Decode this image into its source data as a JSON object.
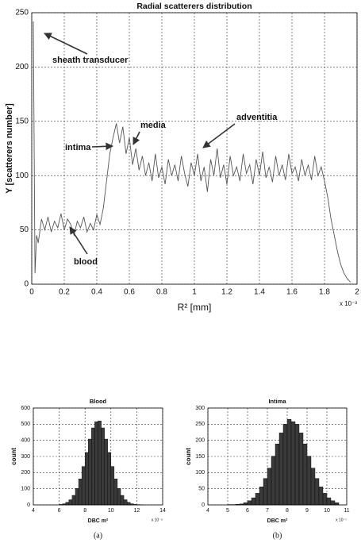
{
  "chart_data": [
    {
      "type": "line",
      "title": "Radial scatterers distribution",
      "x_label": "R² [mm]",
      "y_label": "Y [scatterers number]",
      "x_multiplier": "x 10⁻³",
      "xlim": [
        0,
        2
      ],
      "xticks": [
        0,
        0.2,
        0.4,
        0.6,
        0.8,
        1,
        1.2,
        1.4,
        1.6,
        1.8,
        2
      ],
      "ylim": [
        0,
        250
      ],
      "yticks": [
        0,
        50,
        100,
        150,
        200,
        250
      ],
      "grid": true,
      "annotations": [
        "sheath transducer",
        "intima",
        "media",
        "adventitia",
        "blood"
      ],
      "series": [
        {
          "color": "#555555",
          "x": [
            0.01,
            0.02,
            0.03,
            0.04,
            0.06,
            0.08,
            0.1,
            0.12,
            0.14,
            0.16,
            0.18,
            0.2,
            0.22,
            0.24,
            0.26,
            0.28,
            0.3,
            0.32,
            0.34,
            0.36,
            0.38,
            0.4,
            0.42,
            0.44,
            0.46,
            0.48,
            0.5,
            0.52,
            0.54,
            0.56,
            0.58,
            0.6,
            0.62,
            0.64,
            0.66,
            0.68,
            0.7,
            0.72,
            0.74,
            0.76,
            0.78,
            0.8,
            0.82,
            0.84,
            0.86,
            0.88,
            0.9,
            0.92,
            0.94,
            0.96,
            0.98,
            1,
            1.02,
            1.04,
            1.06,
            1.08,
            1.1,
            1.12,
            1.14,
            1.16,
            1.18,
            1.2,
            1.22,
            1.24,
            1.26,
            1.28,
            1.3,
            1.32,
            1.34,
            1.36,
            1.38,
            1.4,
            1.42,
            1.44,
            1.46,
            1.48,
            1.5,
            1.52,
            1.54,
            1.56,
            1.58,
            1.6,
            1.62,
            1.64,
            1.66,
            1.68,
            1.7,
            1.72,
            1.74,
            1.76,
            1.78,
            1.8,
            1.82,
            1.84,
            1.86,
            1.88,
            1.9,
            1.92,
            1.94,
            1.96
          ],
          "values": [
            242,
            10,
            45,
            38,
            60,
            50,
            62,
            48,
            58,
            52,
            65,
            50,
            60,
            55,
            45,
            58,
            52,
            62,
            48,
            56,
            50,
            64,
            55,
            70,
            95,
            120,
            135,
            148,
            130,
            145,
            120,
            135,
            110,
            125,
            105,
            118,
            100,
            112,
            95,
            120,
            98,
            108,
            92,
            115,
            100,
            110,
            95,
            118,
            102,
            90,
            112,
            100,
            120,
            95,
            108,
            85,
            115,
            100,
            125,
            98,
            110,
            92,
            118,
            100,
            108,
            95,
            120,
            102,
            110,
            92,
            115,
            100,
            122,
            98,
            108,
            94,
            118,
            100,
            110,
            96,
            120,
            102,
            108,
            95,
            115,
            100,
            110,
            96,
            118,
            100,
            108,
            95,
            80,
            60,
            45,
            30,
            18,
            10,
            5,
            2
          ]
        }
      ]
    },
    {
      "type": "histogram",
      "title": "Blood",
      "x_label": "DBC m²",
      "y_label": "count",
      "x_multiplier": "x 10⁻⁹",
      "caption": "(a)",
      "xlim": [
        4,
        14
      ],
      "xticks": [
        4,
        6,
        8,
        10,
        12,
        14
      ],
      "ylim": [
        0,
        600
      ],
      "yticks": [
        0,
        100,
        200,
        300,
        400,
        500,
        600
      ],
      "grid": true,
      "color": "#3a3a3a",
      "bins": [
        6,
        6.25,
        6.5,
        6.75,
        7,
        7.25,
        7.5,
        7.75,
        8,
        8.25,
        8.5,
        8.75,
        9,
        9.25,
        9.5,
        9.75,
        10,
        10.25,
        10.5,
        10.75,
        11,
        11.25,
        11.5,
        11.75,
        12,
        12.25,
        12.5
      ],
      "values": [
        3,
        7,
        16,
        32,
        59,
        102,
        161,
        238,
        325,
        408,
        477,
        515,
        520,
        477,
        408,
        325,
        238,
        161,
        102,
        59,
        32,
        16,
        7,
        3,
        2,
        1
      ]
    },
    {
      "type": "histogram",
      "title": "Intima",
      "x_label": "DBC m²",
      "y_label": "count",
      "x_multiplier": "x 10⁻⁷",
      "caption": "(b)",
      "xlim": [
        4,
        11
      ],
      "xticks": [
        4,
        5,
        6,
        7,
        8,
        9,
        10,
        11
      ],
      "ylim": [
        0,
        300
      ],
      "yticks": [
        0,
        50,
        100,
        150,
        200,
        250,
        300
      ],
      "grid": true,
      "color": "#3a3a3a",
      "bins": [
        5,
        5.2,
        5.4,
        5.6,
        5.8,
        6,
        6.2,
        6.4,
        6.6,
        6.8,
        7,
        7.2,
        7.4,
        7.6,
        7.8,
        8,
        8.2,
        8.4,
        8.6,
        8.8,
        9,
        9.2,
        9.4,
        9.6,
        9.8,
        10,
        10.2,
        10.4,
        10.6
      ],
      "values": [
        1,
        1,
        2,
        3,
        7,
        13,
        22,
        36,
        56,
        82,
        114,
        151,
        189,
        223,
        250,
        265,
        258,
        250,
        223,
        189,
        151,
        114,
        82,
        56,
        36,
        22,
        13,
        7
      ]
    }
  ]
}
